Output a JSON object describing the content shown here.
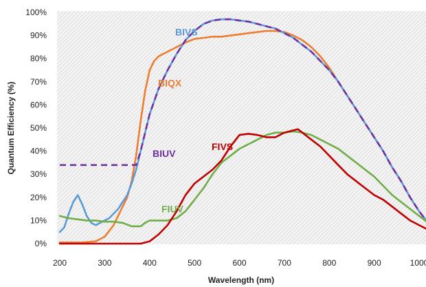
{
  "chart_data": {
    "type": "line",
    "title": "",
    "xlabel": "Wavelength (nm)",
    "ylabel": "Quantum Efficiency (%)",
    "xlim": [
      200,
      1050
    ],
    "ylim": [
      0,
      100
    ],
    "xticks": [
      200,
      300,
      400,
      500,
      600,
      700,
      800,
      900,
      1000
    ],
    "yticks": [
      0,
      10,
      20,
      30,
      40,
      50,
      60,
      70,
      80,
      90,
      100
    ],
    "ytick_labels": [
      "0%",
      "10%",
      "20%",
      "30%",
      "40%",
      "50%",
      "60%",
      "70%",
      "80%",
      "90%",
      "100%"
    ],
    "grid": "hatched background, no grid lines",
    "legend": "labels placed next to each curve",
    "series": [
      {
        "name": "BIVS",
        "color": "#5b9bd5",
        "dash": "solid",
        "points": [
          [
            200,
            5
          ],
          [
            210,
            7
          ],
          [
            220,
            13
          ],
          [
            230,
            18
          ],
          [
            240,
            21
          ],
          [
            250,
            17
          ],
          [
            260,
            12
          ],
          [
            270,
            9
          ],
          [
            280,
            8
          ],
          [
            290,
            9
          ],
          [
            300,
            10
          ],
          [
            310,
            11
          ],
          [
            320,
            13
          ],
          [
            330,
            15
          ],
          [
            340,
            18
          ],
          [
            350,
            21
          ],
          [
            360,
            26
          ],
          [
            370,
            32
          ],
          [
            380,
            40
          ],
          [
            390,
            48
          ],
          [
            400,
            56
          ],
          [
            420,
            67
          ],
          [
            440,
            75
          ],
          [
            460,
            82
          ],
          [
            480,
            88
          ],
          [
            500,
            92
          ],
          [
            520,
            95
          ],
          [
            540,
            96.5
          ],
          [
            560,
            97
          ],
          [
            580,
            97
          ],
          [
            600,
            96.5
          ],
          [
            620,
            96
          ],
          [
            640,
            95
          ],
          [
            660,
            94
          ],
          [
            680,
            93
          ],
          [
            700,
            91
          ],
          [
            720,
            89
          ],
          [
            740,
            86
          ],
          [
            760,
            83
          ],
          [
            780,
            79
          ],
          [
            800,
            75
          ],
          [
            820,
            70
          ],
          [
            840,
            64
          ],
          [
            860,
            58
          ],
          [
            880,
            52
          ],
          [
            900,
            46
          ],
          [
            920,
            40
          ],
          [
            940,
            33
          ],
          [
            960,
            27
          ],
          [
            980,
            20
          ],
          [
            1000,
            14
          ],
          [
            1020,
            9
          ],
          [
            1040,
            5
          ],
          [
            1050,
            3
          ]
        ]
      },
      {
        "name": "BIUV",
        "color": "#7030a0",
        "dash": "dashed",
        "points": [
          [
            200,
            34
          ],
          [
            360,
            34
          ],
          [
            370,
            34
          ],
          [
            380,
            40
          ],
          [
            390,
            48
          ],
          [
            400,
            56
          ],
          [
            420,
            67
          ],
          [
            440,
            75
          ],
          [
            460,
            82
          ],
          [
            480,
            88
          ],
          [
            500,
            92
          ],
          [
            520,
            95
          ],
          [
            540,
            96.5
          ],
          [
            560,
            97
          ],
          [
            580,
            97
          ],
          [
            600,
            96.5
          ],
          [
            620,
            96
          ],
          [
            640,
            95
          ],
          [
            660,
            94
          ],
          [
            680,
            93
          ],
          [
            700,
            91
          ],
          [
            720,
            89
          ],
          [
            740,
            86
          ],
          [
            760,
            83
          ],
          [
            780,
            79
          ],
          [
            800,
            75
          ],
          [
            820,
            70
          ],
          [
            840,
            64
          ],
          [
            860,
            58
          ],
          [
            880,
            52
          ],
          [
            900,
            46
          ],
          [
            920,
            40
          ],
          [
            940,
            33
          ],
          [
            960,
            27
          ],
          [
            980,
            20
          ],
          [
            1000,
            14
          ],
          [
            1020,
            9
          ],
          [
            1040,
            5
          ],
          [
            1050,
            3
          ]
        ]
      },
      {
        "name": "BIQX",
        "color": "#ed7d31",
        "dash": "solid",
        "points": [
          [
            200,
            0.5
          ],
          [
            250,
            0.5
          ],
          [
            280,
            1
          ],
          [
            300,
            3
          ],
          [
            320,
            8
          ],
          [
            340,
            16
          ],
          [
            350,
            20
          ],
          [
            360,
            27
          ],
          [
            370,
            38
          ],
          [
            380,
            53
          ],
          [
            390,
            66
          ],
          [
            400,
            75
          ],
          [
            410,
            79
          ],
          [
            420,
            81
          ],
          [
            440,
            83
          ],
          [
            460,
            85
          ],
          [
            480,
            87
          ],
          [
            500,
            88.5
          ],
          [
            520,
            89
          ],
          [
            540,
            89.5
          ],
          [
            560,
            89.5
          ],
          [
            580,
            90
          ],
          [
            600,
            90.5
          ],
          [
            620,
            91
          ],
          [
            640,
            91.5
          ],
          [
            660,
            92
          ],
          [
            680,
            92
          ],
          [
            700,
            91.5
          ],
          [
            720,
            90
          ],
          [
            740,
            88
          ],
          [
            760,
            85
          ],
          [
            780,
            81
          ],
          [
            800,
            76
          ],
          [
            820,
            70
          ],
          [
            840,
            64
          ],
          [
            860,
            58
          ],
          [
            880,
            52
          ],
          [
            900,
            46
          ],
          [
            920,
            40
          ],
          [
            940,
            33
          ],
          [
            960,
            27
          ],
          [
            980,
            20
          ],
          [
            1000,
            14
          ],
          [
            1020,
            9
          ],
          [
            1040,
            5
          ],
          [
            1050,
            3
          ]
        ]
      },
      {
        "name": "FIVS",
        "color": "#c00000",
        "dash": "solid",
        "points": [
          [
            200,
            0
          ],
          [
            380,
            0
          ],
          [
            400,
            1
          ],
          [
            420,
            4
          ],
          [
            440,
            8
          ],
          [
            460,
            14
          ],
          [
            480,
            21
          ],
          [
            500,
            26
          ],
          [
            520,
            29
          ],
          [
            540,
            32
          ],
          [
            560,
            36
          ],
          [
            580,
            42
          ],
          [
            600,
            47
          ],
          [
            620,
            47.5
          ],
          [
            640,
            47
          ],
          [
            660,
            46
          ],
          [
            680,
            46
          ],
          [
            700,
            48
          ],
          [
            720,
            49
          ],
          [
            730,
            49.5
          ],
          [
            740,
            48
          ],
          [
            760,
            45
          ],
          [
            780,
            42
          ],
          [
            800,
            38
          ],
          [
            820,
            34
          ],
          [
            840,
            30
          ],
          [
            860,
            27
          ],
          [
            880,
            24
          ],
          [
            900,
            21
          ],
          [
            920,
            19
          ],
          [
            940,
            16
          ],
          [
            960,
            13
          ],
          [
            980,
            10
          ],
          [
            1000,
            8
          ],
          [
            1020,
            6
          ],
          [
            1040,
            3.5
          ],
          [
            1050,
            3
          ]
        ]
      },
      {
        "name": "FIUV",
        "color": "#70ad47",
        "dash": "solid",
        "points": [
          [
            200,
            12
          ],
          [
            220,
            11
          ],
          [
            240,
            10.5
          ],
          [
            260,
            10
          ],
          [
            280,
            10
          ],
          [
            300,
            9.5
          ],
          [
            320,
            9.5
          ],
          [
            340,
            9
          ],
          [
            360,
            7.5
          ],
          [
            380,
            7.5
          ],
          [
            390,
            9
          ],
          [
            400,
            10
          ],
          [
            420,
            10
          ],
          [
            440,
            10
          ],
          [
            460,
            11
          ],
          [
            480,
            14
          ],
          [
            500,
            19
          ],
          [
            520,
            24
          ],
          [
            540,
            30
          ],
          [
            560,
            35
          ],
          [
            580,
            38
          ],
          [
            600,
            41
          ],
          [
            620,
            43
          ],
          [
            640,
            45
          ],
          [
            660,
            47
          ],
          [
            680,
            48
          ],
          [
            700,
            48
          ],
          [
            720,
            48.5
          ],
          [
            740,
            48
          ],
          [
            760,
            47
          ],
          [
            780,
            45
          ],
          [
            800,
            43
          ],
          [
            820,
            41
          ],
          [
            840,
            38
          ],
          [
            860,
            35
          ],
          [
            880,
            32
          ],
          [
            900,
            29
          ],
          [
            920,
            25
          ],
          [
            940,
            21
          ],
          [
            960,
            18
          ],
          [
            980,
            15
          ],
          [
            1000,
            12
          ],
          [
            1020,
            9
          ],
          [
            1040,
            5
          ],
          [
            1050,
            3
          ]
        ]
      }
    ],
    "annotations": [
      {
        "text": "BIVS",
        "series": "BIVS",
        "color": "#5b9bd5",
        "x": 255,
        "y": 90
      },
      {
        "text": "BIQX",
        "series": "BIQX",
        "color": "#ed7d31",
        "x": 230,
        "y": 68
      },
      {
        "text": "BIUV",
        "series": "BIUV",
        "color": "#7030a0",
        "x": 222,
        "y": 37.5
      },
      {
        "text": "FIVS",
        "series": "FIVS",
        "color": "#c00000",
        "x": 308,
        "y": 40.5
      },
      {
        "text": "FIUV",
        "series": "FIUV",
        "color": "#70ad47",
        "x": 235,
        "y": 13.5
      }
    ]
  }
}
